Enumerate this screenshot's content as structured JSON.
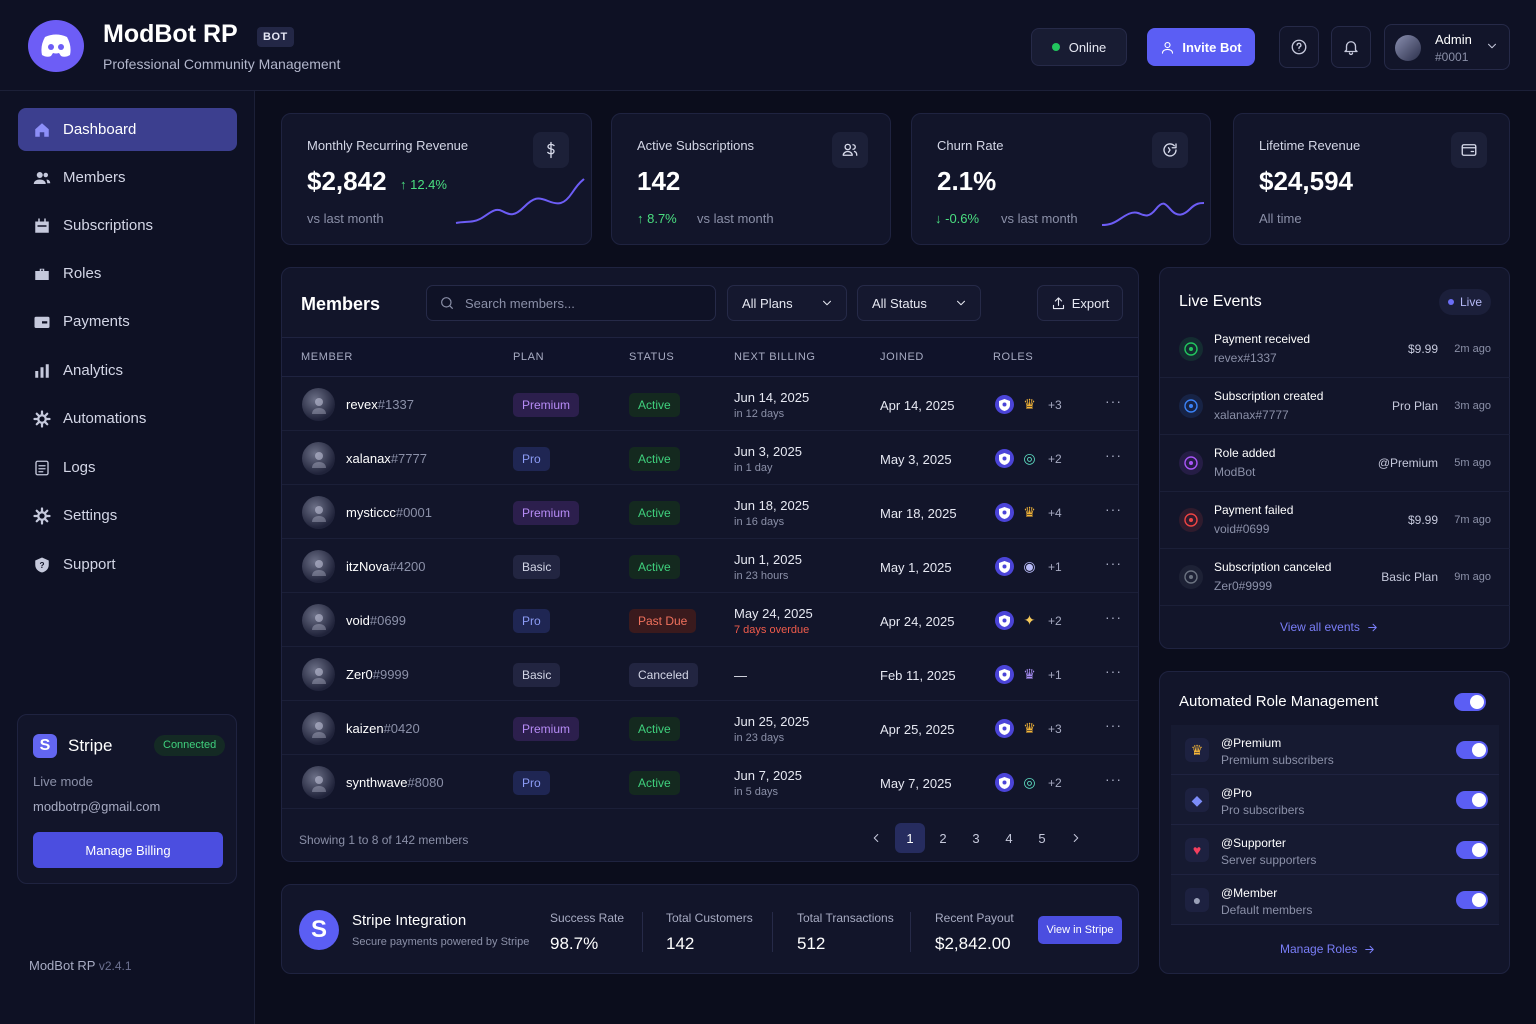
{
  "header": {
    "brand": "ModBot RP",
    "badge": "BOT",
    "tagline": "Professional Community Management",
    "status": "Online",
    "invite": "Invite Bot",
    "user_name": "Admin",
    "user_tag": "#0001"
  },
  "sidebar": {
    "items": [
      {
        "label": "Dashboard",
        "icon": "home-icon"
      },
      {
        "label": "Members",
        "icon": "users-icon"
      },
      {
        "label": "Subscriptions",
        "icon": "calendar-icon"
      },
      {
        "label": "Roles",
        "icon": "briefcase-icon"
      },
      {
        "label": "Payments",
        "icon": "card-icon"
      },
      {
        "label": "Analytics",
        "icon": "bar-chart-icon"
      },
      {
        "label": "Automations",
        "icon": "gear-icon"
      },
      {
        "label": "Logs",
        "icon": "list-icon"
      },
      {
        "label": "Settings",
        "icon": "settings-icon"
      },
      {
        "label": "Support",
        "icon": "help-icon"
      }
    ],
    "stripe": {
      "logo": "S",
      "name": "Stripe",
      "status": "Connected",
      "mode": "Live mode",
      "email": "modbotrp@gmail.com",
      "button": "Manage Billing"
    },
    "app_name": "ModBot RP",
    "version": "v2.4.1"
  },
  "stats": [
    {
      "label": "Monthly Recurring Revenue",
      "value": "$2,842",
      "change": "↑ 12.4%",
      "sub": "vs last month"
    },
    {
      "label": "Active Subscriptions",
      "value": "142",
      "change": "↑ 8.7%",
      "sub": "vs last month"
    },
    {
      "label": "Churn Rate",
      "value": "2.1%",
      "change": "↓ -0.6%",
      "sub": "vs last month"
    },
    {
      "label": "Lifetime Revenue",
      "value": "$24,594",
      "change": "",
      "sub": "All time"
    }
  ],
  "members": {
    "title": "Members",
    "search_placeholder": "Search members...",
    "plan_filter": "All Plans",
    "status_filter": "All Status",
    "export": "Export",
    "columns": [
      "MEMBER",
      "PLAN",
      "STATUS",
      "NEXT BILLING",
      "JOINED",
      "ROLES"
    ],
    "rows": [
      {
        "name": "revex",
        "tag": "#1337",
        "plan": "Premium",
        "status": "Active",
        "billing": "Jun 14, 2025",
        "billing_sub": "in 12 days",
        "joined": "Apr 14, 2025",
        "role_icon": "♛",
        "role_color": "#f5b638",
        "extra": "+3"
      },
      {
        "name": "xalanax",
        "tag": "#7777",
        "plan": "Pro",
        "status": "Active",
        "billing": "Jun 3, 2025",
        "billing_sub": "in 1 day",
        "joined": "May 3, 2025",
        "role_icon": "◎",
        "role_color": "#5ee0c4",
        "extra": "+2"
      },
      {
        "name": "mysticcc",
        "tag": "#0001",
        "plan": "Premium",
        "status": "Active",
        "billing": "Jun 18, 2025",
        "billing_sub": "in 16 days",
        "joined": "Mar 18, 2025",
        "role_icon": "♛",
        "role_color": "#f5b638",
        "extra": "+4"
      },
      {
        "name": "itzNova",
        "tag": "#4200",
        "plan": "Basic",
        "status": "Active",
        "billing": "Jun 1, 2025",
        "billing_sub": "in 23 hours",
        "joined": "May 1, 2025",
        "role_icon": "◉",
        "role_color": "#b8bbf8",
        "extra": "+1"
      },
      {
        "name": "void",
        "tag": "#0699",
        "plan": "Pro",
        "status": "Past Due",
        "billing": "May 24, 2025",
        "billing_sub": "7 days overdue",
        "joined": "Apr 24, 2025",
        "role_icon": "✦",
        "role_color": "#f5c95a",
        "extra": "+2"
      },
      {
        "name": "Zer0",
        "tag": "#9999",
        "plan": "Basic",
        "status": "Canceled",
        "billing": "—",
        "billing_sub": "",
        "joined": "Feb 11, 2025",
        "role_icon": "♛",
        "role_color": "#a98ff5",
        "extra": "+1"
      },
      {
        "name": "kaizen",
        "tag": "#0420",
        "plan": "Premium",
        "status": "Active",
        "billing": "Jun 25, 2025",
        "billing_sub": "in 23 days",
        "joined": "Apr 25, 2025",
        "role_icon": "♛",
        "role_color": "#f5b638",
        "extra": "+3"
      },
      {
        "name": "synthwave",
        "tag": "#8080",
        "plan": "Pro",
        "status": "Active",
        "billing": "Jun 7, 2025",
        "billing_sub": "in 5 days",
        "joined": "May 7, 2025",
        "role_icon": "◎",
        "role_color": "#5ee0c4",
        "extra": "+2"
      }
    ],
    "footer": "Showing 1 to 8 of 142 members",
    "pages": [
      "1",
      "2",
      "3",
      "4",
      "5"
    ],
    "current_page": "1"
  },
  "stripe_integration": {
    "logo": "S",
    "title": "Stripe Integration",
    "subtitle": "Secure payments powered by Stripe",
    "metrics": [
      {
        "label": "Success Rate",
        "value": "98.7%"
      },
      {
        "label": "Total Customers",
        "value": "142"
      },
      {
        "label": "Total Transactions",
        "value": "512"
      },
      {
        "label": "Recent Payout",
        "value": "$2,842.00"
      }
    ],
    "button": "View in Stripe"
  },
  "live_events": {
    "title": "Live Events",
    "live_label": "Live",
    "events": [
      {
        "title": "Payment received",
        "subject": "revex#1337",
        "amount": "$9.99",
        "time": "2m ago",
        "color": "#22c55e"
      },
      {
        "title": "Subscription created",
        "subject": "xalanax#7777",
        "amount": "Pro Plan",
        "time": "3m ago",
        "color": "#3b82f6"
      },
      {
        "title": "Role added",
        "subject": "ModBot",
        "amount": "@Premium",
        "time": "5m ago",
        "color": "#a855f7"
      },
      {
        "title": "Payment failed",
        "subject": "void#0699",
        "amount": "$9.99",
        "time": "7m ago",
        "color": "#ef4444"
      },
      {
        "title": "Subscription canceled",
        "subject": "Zer0#9999",
        "amount": "Basic Plan",
        "time": "9m ago",
        "color": "#6b7280"
      }
    ],
    "view_all": "View all events"
  },
  "role_management": {
    "title": "Automated Role Management",
    "enabled": true,
    "roles": [
      {
        "name": "@Premium",
        "desc": "Premium subscribers",
        "icon": "crown-icon",
        "glyph": "♛",
        "color": "#f5b638",
        "enabled": true
      },
      {
        "name": "@Pro",
        "desc": "Pro subscribers",
        "icon": "diamond-icon",
        "glyph": "◆",
        "color": "#7c8cf8",
        "enabled": true
      },
      {
        "name": "@Supporter",
        "desc": "Server supporters",
        "icon": "heart-icon",
        "glyph": "♥",
        "color": "#f43f5e",
        "enabled": true
      },
      {
        "name": "@Member",
        "desc": "Default members",
        "icon": "person-icon",
        "glyph": "●",
        "color": "#9aa0b8",
        "enabled": true
      }
    ],
    "manage": "Manage Roles"
  },
  "colors": {
    "accent": "#5b5ef4",
    "background": "#0b0d1c",
    "panel": "#12152a",
    "success": "#22c55e",
    "danger": "#ef4444"
  }
}
